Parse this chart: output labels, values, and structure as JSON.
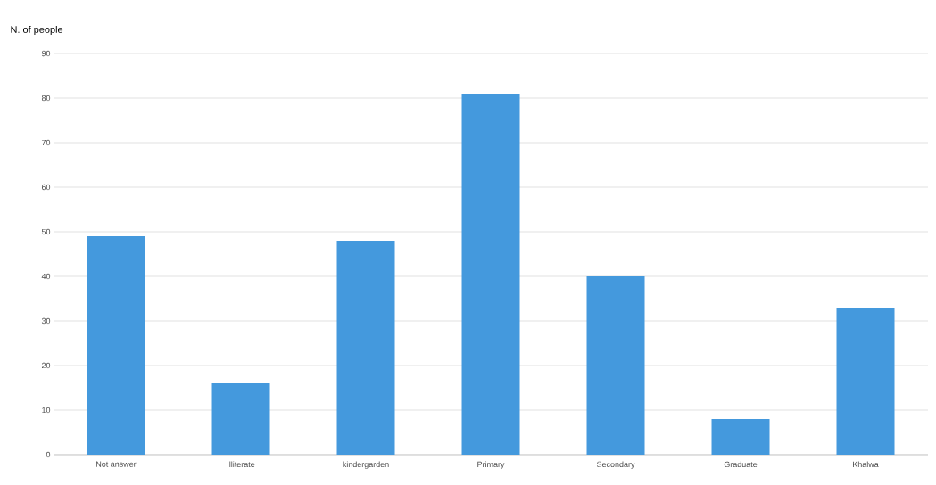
{
  "chart_data": {
    "type": "bar",
    "ylabel": "N. of people",
    "categories": [
      "Not answer",
      "Illiterate",
      "kindergarden",
      "Primary",
      "Secondary",
      "Graduate",
      "Khalwa"
    ],
    "values": [
      49,
      16,
      48,
      81,
      40,
      8,
      33
    ],
    "color": "#4499dd",
    "ylim": [
      0,
      90
    ],
    "yticks": [
      0,
      10,
      20,
      30,
      40,
      50,
      60,
      70,
      80,
      90
    ],
    "grid": "y"
  }
}
